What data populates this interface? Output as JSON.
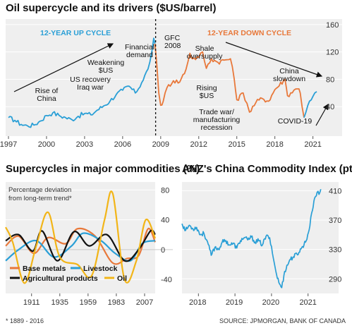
{
  "chart_data": [
    {
      "type": "line",
      "title": "Oil supercycle and its drivers ($US/barrel)",
      "x_ticks": [
        "1997",
        "2000",
        "2003",
        "2006",
        "2009",
        "2012",
        "2015",
        "2018",
        "2021"
      ],
      "y_ticks": [
        "40",
        "80",
        "120",
        "160"
      ],
      "ylim": [
        0,
        165
      ],
      "xlim": [
        1997,
        2021.8
      ],
      "colors": {
        "up": "#2a9fd6",
        "down": "#e8783a",
        "ref": "#111111"
      },
      "cycle_labels": {
        "up": "12-YEAR UP CYCLE",
        "down": "12-YEAR DOWN CYCLE"
      },
      "annotations": [
        {
          "lines": [
            "Rise of",
            "China"
          ]
        },
        {
          "lines": [
            "US recovery",
            "Iraq war"
          ]
        },
        {
          "lines": [
            "Weakening",
            "$US"
          ]
        },
        {
          "lines": [
            "Financial",
            "demand"
          ]
        },
        {
          "lines": [
            "GFC",
            "2008"
          ]
        },
        {
          "lines": [
            "Shale",
            "oversupply"
          ]
        },
        {
          "lines": [
            "Rising",
            "$US"
          ]
        },
        {
          "lines": [
            "Trade war/",
            "manufacturing",
            "recession"
          ]
        },
        {
          "lines": [
            "China",
            "slowdown"
          ]
        },
        {
          "lines": [
            "COVID-19"
          ]
        }
      ],
      "series": [
        {
          "key": "up",
          "values": [
            [
              1997,
              24
            ],
            [
              1997.5,
              20
            ],
            [
              1998,
              14
            ],
            [
              1998.5,
              12
            ],
            [
              1999,
              13
            ],
            [
              1999.5,
              19
            ],
            [
              2000,
              27
            ],
            [
              2000.5,
              31
            ],
            [
              2001,
              27
            ],
            [
              2001.5,
              24
            ],
            [
              2002,
              21
            ],
            [
              2002.5,
              26
            ],
            [
              2003,
              30
            ],
            [
              2003.5,
              28
            ],
            [
              2004,
              35
            ],
            [
              2004.5,
              41
            ],
            [
              2005,
              48
            ],
            [
              2005.5,
              58
            ],
            [
              2006,
              64
            ],
            [
              2006.5,
              70
            ],
            [
              2007,
              60
            ],
            [
              2007.5,
              75
            ],
            [
              2008,
              95
            ],
            [
              2008.3,
              120
            ],
            [
              2008.45,
              140
            ],
            [
              2008.55,
              132
            ]
          ]
        },
        {
          "key": "down",
          "values": [
            [
              2008.55,
              132
            ],
            [
              2008.7,
              100
            ],
            [
              2008.85,
              60
            ],
            [
              2009,
              42
            ],
            [
              2009.2,
              48
            ],
            [
              2009.5,
              68
            ],
            [
              2010,
              78
            ],
            [
              2010.5,
              76
            ],
            [
              2011,
              95
            ],
            [
              2011.3,
              118
            ],
            [
              2011.5,
              110
            ],
            [
              2012,
              112
            ],
            [
              2012.3,
              120
            ],
            [
              2012.6,
              96
            ],
            [
              2013,
              110
            ],
            [
              2013.5,
              105
            ],
            [
              2014,
              108
            ],
            [
              2014.5,
              110
            ],
            [
              2014.8,
              80
            ],
            [
              2015,
              50
            ],
            [
              2015.5,
              60
            ],
            [
              2015.8,
              45
            ],
            [
              2016,
              32
            ],
            [
              2016.5,
              46
            ],
            [
              2017,
              52
            ],
            [
              2017.5,
              48
            ],
            [
              2018,
              65
            ],
            [
              2018.8,
              80
            ],
            [
              2019,
              56
            ],
            [
              2019.5,
              64
            ],
            [
              2019.9,
              66
            ],
            [
              2020,
              60
            ],
            [
              2020.3,
              24
            ]
          ]
        },
        {
          "key": "up",
          "values": [
            [
              2020.3,
              24
            ],
            [
              2020.6,
              42
            ],
            [
              2021,
              55
            ],
            [
              2021.3,
              62
            ]
          ]
        }
      ]
    },
    {
      "type": "line",
      "title": "Supercycles in major commodities (%)",
      "note": [
        "Percentage deviation",
        "from long-term trend*"
      ],
      "x_ticks": [
        "1911",
        "1935",
        "1959",
        "1983",
        "2007"
      ],
      "y_ticks": [
        "80",
        "40",
        "0",
        "-40"
      ],
      "ylim": [
        -55,
        85
      ],
      "xlim": [
        1889,
        2016
      ],
      "series": [
        {
          "name": "Base metals",
          "color": "#e8783a",
          "values": [
            [
              1889,
              5
            ],
            [
              1900,
              18
            ],
            [
              1913,
              -5
            ],
            [
              1925,
              16
            ],
            [
              1940,
              8
            ],
            [
              1950,
              28
            ],
            [
              1965,
              18
            ],
            [
              1980,
              -18
            ],
            [
              1992,
              -12
            ],
            [
              2002,
              -8
            ],
            [
              2010,
              28
            ],
            [
              2016,
              10
            ]
          ]
        },
        {
          "name": "Livestock",
          "color": "#2a9fd6",
          "values": [
            [
              1889,
              -15
            ],
            [
              1900,
              0
            ],
            [
              1915,
              12
            ],
            [
              1930,
              -10
            ],
            [
              1945,
              5
            ],
            [
              1955,
              22
            ],
            [
              1970,
              12
            ],
            [
              1982,
              -5
            ],
            [
              1995,
              -15
            ],
            [
              2005,
              8
            ],
            [
              2016,
              12
            ]
          ]
        },
        {
          "name": "Agricultural products",
          "color": "#111111",
          "values": [
            [
              1889,
              12
            ],
            [
              1900,
              20
            ],
            [
              1912,
              -2
            ],
            [
              1920,
              25
            ],
            [
              1933,
              -15
            ],
            [
              1947,
              24
            ],
            [
              1960,
              5
            ],
            [
              1975,
              20
            ],
            [
              1990,
              -15
            ],
            [
              2002,
              0
            ],
            [
              2012,
              25
            ],
            [
              2016,
              20
            ]
          ]
        },
        {
          "name": "Oil",
          "color": "#f2b518",
          "values": [
            [
              1889,
              30
            ],
            [
              1895,
              10
            ],
            [
              1905,
              -45
            ],
            [
              1915,
              5
            ],
            [
              1925,
              50
            ],
            [
              1935,
              -10
            ],
            [
              1950,
              -20
            ],
            [
              1962,
              -35
            ],
            [
              1973,
              40
            ],
            [
              1980,
              75
            ],
            [
              1990,
              -40
            ],
            [
              2000,
              -15
            ],
            [
              2008,
              40
            ],
            [
              2016,
              15
            ]
          ]
        }
      ]
    },
    {
      "type": "line",
      "title": "ANZ's China Commodity Index (pts)",
      "x_ticks": [
        "2018",
        "2019",
        "2020",
        "2021"
      ],
      "y_ticks": [
        "410",
        "370",
        "330",
        "290"
      ],
      "ylim": [
        272,
        420
      ],
      "xlim": [
        2017.55,
        2021.45
      ],
      "color": "#2a9fd6",
      "values": [
        [
          2017.55,
          365
        ],
        [
          2017.65,
          356
        ],
        [
          2017.75,
          363
        ],
        [
          2017.85,
          358
        ],
        [
          2017.95,
          360
        ],
        [
          2018.05,
          350
        ],
        [
          2018.15,
          352
        ],
        [
          2018.25,
          340
        ],
        [
          2018.35,
          322
        ],
        [
          2018.45,
          333
        ],
        [
          2018.55,
          330
        ],
        [
          2018.65,
          340
        ],
        [
          2018.75,
          342
        ],
        [
          2018.85,
          336
        ],
        [
          2018.95,
          338
        ],
        [
          2019.05,
          332
        ],
        [
          2019.15,
          342
        ],
        [
          2019.25,
          346
        ],
        [
          2019.35,
          343
        ],
        [
          2019.45,
          347
        ],
        [
          2019.55,
          340
        ],
        [
          2019.65,
          342
        ],
        [
          2019.75,
          336
        ],
        [
          2019.85,
          348
        ],
        [
          2019.95,
          346
        ],
        [
          2020.0,
          334
        ],
        [
          2020.05,
          318
        ],
        [
          2020.12,
          300
        ],
        [
          2020.2,
          285
        ],
        [
          2020.28,
          278
        ],
        [
          2020.36,
          300
        ],
        [
          2020.5,
          316
        ],
        [
          2020.6,
          320
        ],
        [
          2020.75,
          326
        ],
        [
          2020.85,
          334
        ],
        [
          2020.95,
          342
        ],
        [
          2021.05,
          362
        ],
        [
          2021.1,
          380
        ],
        [
          2021.18,
          400
        ],
        [
          2021.25,
          408
        ],
        [
          2021.3,
          405
        ],
        [
          2021.35,
          412
        ]
      ]
    }
  ],
  "footer": {
    "footnote": "* 1889 - 2016",
    "source": "SOURCE: JPMORGAN, BANK OF CANADA"
  }
}
